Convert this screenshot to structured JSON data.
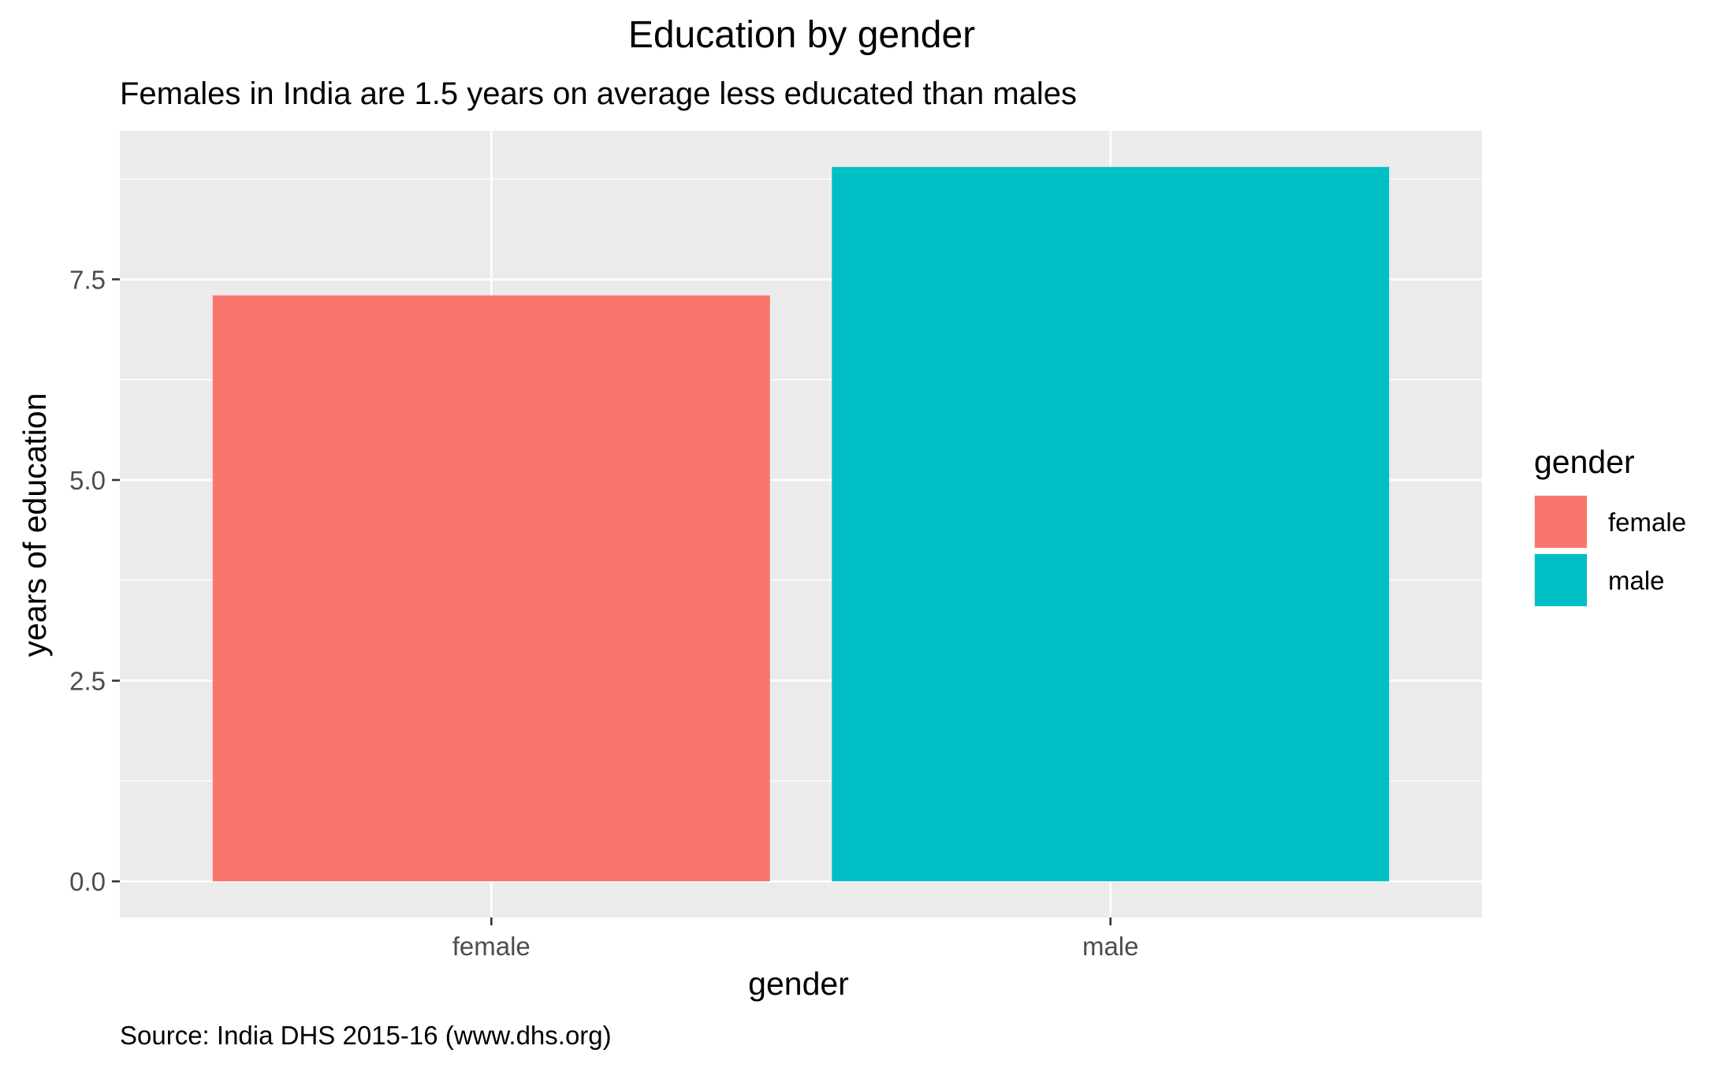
{
  "chart_data": {
    "type": "bar",
    "title": "Education by gender",
    "subtitle": "Females in India are 1.5 years on average less educated than males",
    "caption": "Source: India DHS 2015-16 (www.dhs.org)",
    "xlabel": "gender",
    "ylabel": "years of education",
    "categories": [
      "female",
      "male"
    ],
    "values": [
      7.3,
      8.9
    ],
    "colors": [
      "#F8766D",
      "#00BFC4"
    ],
    "ylim": [
      -0.45,
      9.35
    ],
    "yticks": [
      0.0,
      2.5,
      5.0,
      7.5
    ],
    "ytick_labels": [
      "0.0",
      "2.5",
      "5.0",
      "7.5"
    ],
    "grid": true,
    "panel_background": "#EBEBEB",
    "legend": {
      "title": "gender",
      "position": "right",
      "items": [
        {
          "label": "female",
          "color": "#F8766D"
        },
        {
          "label": "male",
          "color": "#00BFC4"
        }
      ]
    }
  }
}
